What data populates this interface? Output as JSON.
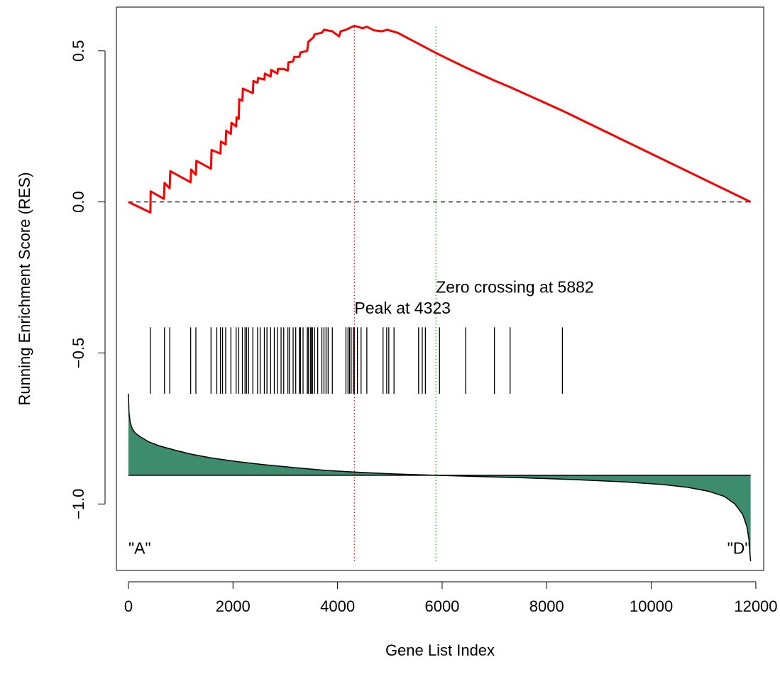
{
  "chart_data": {
    "type": "line",
    "xlabel": "Gene List Index",
    "ylabel": "Running Enrichment Score (RES)",
    "xlim": [
      -230,
      12150
    ],
    "ylim": [
      -1.22,
      0.645
    ],
    "x_ticks": [
      0,
      2000,
      4000,
      6000,
      8000,
      10000,
      12000
    ],
    "y_ticks": [
      {
        "value": 0.5,
        "label": "0.5"
      },
      {
        "value": 0.0,
        "label": "0.0"
      },
      {
        "value": -0.5,
        "label": "−0.5"
      },
      {
        "value": -1.0,
        "label": "−1.0"
      }
    ],
    "n_genes": 11900,
    "series": [
      {
        "role": "running_enrichment_score",
        "color": "#ff0000",
        "points": [
          [
            0,
            0
          ],
          [
            420,
            -0.035
          ],
          [
            425,
            0.035
          ],
          [
            680,
            0.01
          ],
          [
            690,
            0.063
          ],
          [
            790,
            0.045
          ],
          [
            800,
            0.102
          ],
          [
            1190,
            0.065
          ],
          [
            1200,
            0.107
          ],
          [
            1290,
            0.09
          ],
          [
            1300,
            0.136
          ],
          [
            1580,
            0.11
          ],
          [
            1590,
            0.172
          ],
          [
            1760,
            0.16
          ],
          [
            1770,
            0.2
          ],
          [
            1860,
            0.19
          ],
          [
            1870,
            0.236
          ],
          [
            1960,
            0.225
          ],
          [
            1970,
            0.262
          ],
          [
            2060,
            0.25
          ],
          [
            2070,
            0.28
          ],
          [
            2110,
            0.275
          ],
          [
            2120,
            0.34
          ],
          [
            2180,
            0.335
          ],
          [
            2190,
            0.375
          ],
          [
            2380,
            0.36
          ],
          [
            2390,
            0.4
          ],
          [
            2470,
            0.395
          ],
          [
            2480,
            0.41
          ],
          [
            2600,
            0.405
          ],
          [
            2610,
            0.425
          ],
          [
            2720,
            0.415
          ],
          [
            2730,
            0.437
          ],
          [
            2850,
            0.425
          ],
          [
            2860,
            0.44
          ],
          [
            2970,
            0.44
          ],
          [
            3050,
            0.435
          ],
          [
            3060,
            0.462
          ],
          [
            3150,
            0.465
          ],
          [
            3170,
            0.48
          ],
          [
            3270,
            0.48
          ],
          [
            3290,
            0.495
          ],
          [
            3420,
            0.5
          ],
          [
            3440,
            0.53
          ],
          [
            3540,
            0.545
          ],
          [
            3560,
            0.555
          ],
          [
            3700,
            0.56
          ],
          [
            3740,
            0.57
          ],
          [
            3900,
            0.565
          ],
          [
            4030,
            0.548
          ],
          [
            4060,
            0.565
          ],
          [
            4160,
            0.57
          ],
          [
            4323,
            0.583
          ],
          [
            4480,
            0.575
          ],
          [
            4560,
            0.58
          ],
          [
            4700,
            0.568
          ],
          [
            4850,
            0.565
          ],
          [
            4950,
            0.57
          ],
          [
            5150,
            0.56
          ],
          [
            5882,
            0.493
          ],
          [
            6450,
            0.445
          ],
          [
            7000,
            0.402
          ],
          [
            7300,
            0.38
          ],
          [
            8300,
            0.302
          ],
          [
            11900,
            0.0
          ]
        ]
      }
    ],
    "gene_set_hits": [
      420,
      690,
      790,
      1190,
      1290,
      1580,
      1690,
      1760,
      1800,
      1860,
      1960,
      2060,
      2110,
      2180,
      2230,
      2260,
      2300,
      2380,
      2470,
      2520,
      2600,
      2650,
      2720,
      2790,
      2850,
      2920,
      2970,
      3050,
      3080,
      3150,
      3200,
      3270,
      3290,
      3340,
      3420,
      3440,
      3480,
      3500,
      3520,
      3560,
      3620,
      3700,
      3740,
      3780,
      3820,
      3900,
      4160,
      4200,
      4230,
      4260,
      4300,
      4323,
      4380,
      4450,
      4560,
      4870,
      4940,
      4980,
      5080,
      5550,
      5620,
      5680,
      5950,
      6450,
      7000,
      7300,
      8300
    ],
    "hits_band": [
      -0.415,
      -0.635
    ],
    "ranked_metric": {
      "baseline": -0.905,
      "fill_color": "#3d8c6e",
      "points": [
        [
          0,
          -0.635
        ],
        [
          12,
          -0.7
        ],
        [
          35,
          -0.73
        ],
        [
          70,
          -0.75
        ],
        [
          130,
          -0.765
        ],
        [
          250,
          -0.78
        ],
        [
          400,
          -0.795
        ],
        [
          600,
          -0.808
        ],
        [
          900,
          -0.822
        ],
        [
          1200,
          -0.835
        ],
        [
          1600,
          -0.848
        ],
        [
          2100,
          -0.86
        ],
        [
          2600,
          -0.87
        ],
        [
          3200,
          -0.88
        ],
        [
          3800,
          -0.889
        ],
        [
          4400,
          -0.895
        ],
        [
          5000,
          -0.9
        ],
        [
          5882,
          -0.905
        ],
        [
          6500,
          -0.908
        ],
        [
          7500,
          -0.913
        ],
        [
          8500,
          -0.919
        ],
        [
          9500,
          -0.927
        ],
        [
          10200,
          -0.935
        ],
        [
          10700,
          -0.945
        ],
        [
          11100,
          -0.958
        ],
        [
          11400,
          -0.975
        ],
        [
          11600,
          -1.0
        ],
        [
          11750,
          -1.035
        ],
        [
          11830,
          -1.075
        ],
        [
          11870,
          -1.12
        ],
        [
          11890,
          -1.17
        ],
        [
          11900,
          -1.19
        ]
      ]
    },
    "markers": [
      {
        "x": 4323,
        "label": "Peak at 4323",
        "color": "#ff0000",
        "label_x": 4323,
        "label_y": -0.37
      },
      {
        "x": 5882,
        "label": "Zero crossing at 5882",
        "color": "#00bb00",
        "label_x": 5882,
        "label_y": -0.3
      }
    ],
    "zero_line": {
      "y": 0,
      "style": "dashed"
    },
    "corner_labels": [
      {
        "text": "\"A\"",
        "x": 0,
        "y": -1.165,
        "anchor": "start"
      },
      {
        "text": "\"D\"",
        "x": 11900,
        "y": -1.165,
        "anchor": "end"
      }
    ]
  }
}
